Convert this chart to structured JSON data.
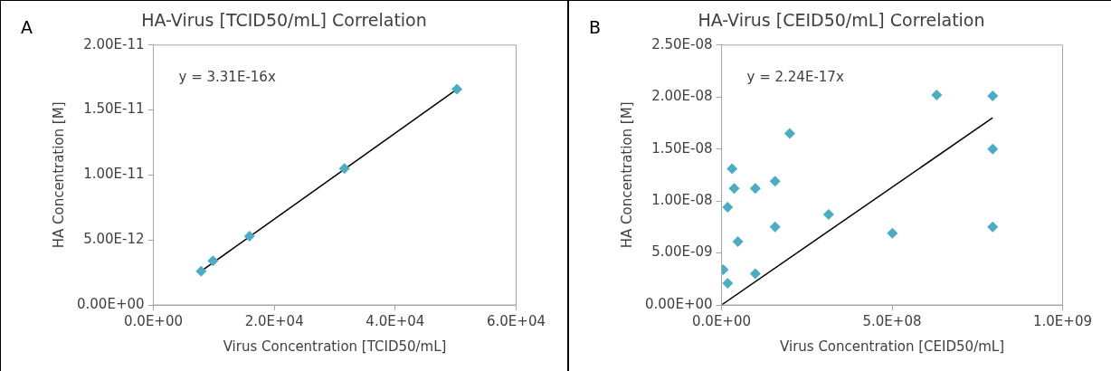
{
  "chart_data": [
    {
      "type": "scatter",
      "title": "HA-Virus [TCID50/mL] Correlation",
      "xlabel": "Virus Concentration [TCID50/mL]",
      "ylabel": "HA Concentration [M]",
      "annotations": [
        "A",
        "y = 3.31E-16x"
      ],
      "xlim": [
        0,
        60000
      ],
      "xticks": [
        {
          "value": 0,
          "label": "0.0E+00"
        },
        {
          "value": 20000,
          "label": "2.0E+04"
        },
        {
          "value": 40000,
          "label": "4.0E+04"
        },
        {
          "value": 60000,
          "label": "6.0E+04"
        }
      ],
      "ylim": [
        0,
        2e-11
      ],
      "yticks": [
        {
          "value": 0,
          "label": "0.00E+00"
        },
        {
          "value": 5e-12,
          "label": "5.00E-12"
        },
        {
          "value": 1e-11,
          "label": "1.00E-11"
        },
        {
          "value": 1.5e-11,
          "label": "1.50E-11"
        },
        {
          "value": 2e-11,
          "label": "2.00E-11"
        }
      ],
      "grid": false,
      "legend": false,
      "series": [
        {
          "type": "scatter",
          "marker": "diamond",
          "color": "#4bacc6",
          "x": [
            7900,
            9850,
            15900,
            31600,
            50200
          ],
          "values": [
            2.6e-12,
            3.4e-12,
            5.3e-12,
            1.05e-11,
            1.66e-11
          ]
        },
        {
          "type": "line",
          "color": "#000000",
          "line_style": "solid",
          "x": [
            7900,
            50200
          ],
          "values": [
            2.6e-12,
            1.66e-11
          ]
        }
      ]
    },
    {
      "type": "scatter",
      "title": "HA-Virus [CEID50/mL] Correlation",
      "xlabel": "Virus Concentration [CEID50/mL]",
      "ylabel": "HA Concentration [M]",
      "annotations": [
        "B",
        "y = 2.24E-17x"
      ],
      "xlim": [
        0,
        1000000000.0
      ],
      "xticks": [
        {
          "value": 0,
          "label": "0.0E+00"
        },
        {
          "value": 500000000.0,
          "label": "5.0E+08"
        },
        {
          "value": 1000000000.0,
          "label": "1.0E+09"
        }
      ],
      "ylim": [
        0,
        2.5e-08
      ],
      "yticks": [
        {
          "value": 0,
          "label": "0.00E+00"
        },
        {
          "value": 5e-09,
          "label": "5.00E-09"
        },
        {
          "value": 1e-08,
          "label": "1.00E-08"
        },
        {
          "value": 1.5e-08,
          "label": "1.50E-08"
        },
        {
          "value": 2e-08,
          "label": "2.00E-08"
        },
        {
          "value": 2.5e-08,
          "label": "2.50E-08"
        }
      ],
      "grid": false,
      "legend": false,
      "series": [
        {
          "type": "scatter",
          "marker": "diamond",
          "color": "#4bacc6",
          "x": [
            5000000.0,
            18000000.0,
            18000000.0,
            31000000.0,
            37000000.0,
            48000000.0,
            99000000.0,
            99000000.0,
            157000000.0,
            157000000.0,
            200000000.0,
            314000000.0,
            501000000.0,
            631000000.0,
            795000000.0,
            795000000.0,
            795000000.0
          ],
          "values": [
            3.4e-09,
            2.1e-09,
            9.4e-09,
            1.31e-08,
            1.12e-08,
            6.1e-09,
            1.12e-08,
            3e-09,
            1.19e-08,
            7.5e-09,
            1.65e-08,
            8.7e-09,
            6.9e-09,
            2.02e-08,
            2.01e-08,
            1.5e-08,
            7.5e-09
          ]
        },
        {
          "type": "line",
          "color": "#000000",
          "line_style": "solid",
          "x": [
            0,
            795000000.0
          ],
          "values": [
            0,
            1.8e-08
          ]
        }
      ]
    }
  ]
}
